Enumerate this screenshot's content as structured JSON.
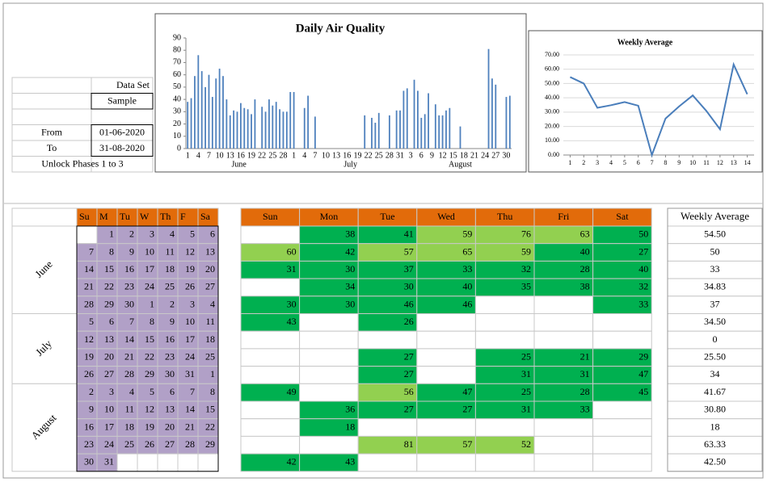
{
  "info": {
    "data_set_label": "Data Set",
    "data_set": "Sample",
    "from_label": "From",
    "from": "01-06-2020",
    "to_label": "To",
    "to": "31-08-2020",
    "note": "Unlock Phases 1 to 3"
  },
  "chart_data": [
    {
      "type": "bar",
      "title": "Daily Air Quality",
      "color": "#4f81bd",
      "grid": false,
      "categories": [
        "1",
        null,
        null,
        "4",
        null,
        null,
        "7",
        null,
        null,
        "10",
        null,
        null,
        "13",
        null,
        null,
        "16",
        null,
        null,
        "19",
        null,
        null,
        "22",
        null,
        null,
        "25",
        null,
        null,
        "28",
        null,
        null,
        "1",
        null,
        null,
        "4",
        null,
        null,
        "7",
        null,
        null,
        "10",
        null,
        null,
        "13",
        null,
        null,
        "16",
        null,
        null,
        "19",
        null,
        null,
        "22",
        null,
        null,
        "25",
        null,
        null,
        "28",
        null,
        null,
        "31",
        null,
        null,
        "3",
        null,
        null,
        "6",
        null,
        null,
        "9",
        null,
        null,
        "12",
        null,
        null,
        "15",
        null,
        null,
        "18",
        null,
        null,
        "21",
        null,
        null,
        "24",
        null,
        null,
        "27",
        null,
        null,
        "30",
        null
      ],
      "groups": [
        "June",
        "July",
        "August"
      ],
      "values": [
        38,
        41,
        59,
        76,
        63,
        50,
        60,
        42,
        57,
        65,
        59,
        40,
        27,
        31,
        30,
        37,
        33,
        32,
        28,
        40,
        null,
        34,
        30,
        40,
        35,
        38,
        32,
        30,
        30,
        46,
        46,
        null,
        null,
        33,
        43,
        null,
        26,
        null,
        null,
        null,
        null,
        null,
        null,
        null,
        null,
        null,
        null,
        null,
        null,
        null,
        27,
        null,
        25,
        21,
        29,
        null,
        null,
        27,
        null,
        31,
        31,
        47,
        49,
        null,
        56,
        47,
        25,
        28,
        45,
        null,
        36,
        27,
        27,
        31,
        33,
        null,
        null,
        18,
        null,
        null,
        null,
        null,
        null,
        null,
        null,
        81,
        57,
        52,
        null,
        null,
        42,
        43
      ],
      "ylim": [
        0,
        90
      ],
      "yticks": [
        0,
        10,
        20,
        30,
        40,
        50,
        60,
        70,
        80,
        90
      ]
    },
    {
      "type": "line",
      "title": "Weekly Average",
      "color": "#4a7ebb",
      "grid": true,
      "x": [
        1,
        2,
        3,
        4,
        5,
        6,
        7,
        8,
        9,
        10,
        11,
        12,
        13,
        14
      ],
      "values": [
        54.5,
        50,
        33,
        34.83,
        37,
        34.5,
        0,
        25.5,
        34,
        41.67,
        30.8,
        18,
        63.33,
        42.5
      ],
      "xlim": [
        0.5,
        14.5
      ],
      "xticks": [
        1,
        2,
        3,
        4,
        5,
        6,
        7,
        8,
        9,
        10,
        11,
        12,
        13,
        14
      ],
      "ylim": [
        0,
        70
      ],
      "yticks": [
        {
          "value": 0,
          "label": "0.00"
        },
        {
          "value": 10,
          "label": "10.00"
        },
        {
          "value": 20,
          "label": "20.00"
        },
        {
          "value": 30,
          "label": "30.00"
        },
        {
          "value": 40,
          "label": "40.00"
        },
        {
          "value": 50,
          "label": "50.00"
        },
        {
          "value": 60,
          "label": "60.00"
        },
        {
          "value": 70,
          "label": "70.00"
        }
      ]
    }
  ],
  "calendar": {
    "day_headers": [
      "Su",
      "M",
      "Tu",
      "W",
      "Th",
      "F",
      "Sa"
    ],
    "value_headers": [
      "Sun",
      "Mon",
      "Tue",
      "Wed",
      "Thu",
      "Fri",
      "Sat"
    ],
    "average_header": "Weekly Average",
    "color_scale": [
      {
        "max": 50,
        "color": "#00b050"
      },
      {
        "max": 100,
        "color": "#92d050"
      }
    ],
    "months": [
      {
        "label": "June",
        "weeks": [
          {
            "days": [
              null,
              1,
              2,
              3,
              4,
              5,
              6
            ],
            "values": [
              null,
              38,
              41,
              59,
              76,
              63,
              50
            ],
            "average": "54.50"
          },
          {
            "days": [
              7,
              8,
              9,
              10,
              11,
              12,
              13
            ],
            "values": [
              60,
              42,
              57,
              65,
              59,
              40,
              27
            ],
            "average": "50"
          },
          {
            "days": [
              14,
              15,
              16,
              17,
              18,
              19,
              20
            ],
            "values": [
              31,
              30,
              37,
              33,
              32,
              28,
              40
            ],
            "average": "33"
          },
          {
            "days": [
              21,
              22,
              23,
              24,
              25,
              26,
              27
            ],
            "values": [
              null,
              34,
              30,
              40,
              35,
              38,
              32
            ],
            "average": "34.83"
          },
          {
            "days": [
              28,
              29,
              30,
              1,
              2,
              3,
              4
            ],
            "values": [
              30,
              30,
              46,
              46,
              null,
              null,
              33
            ],
            "average": "37"
          }
        ]
      },
      {
        "label": "July",
        "weeks": [
          {
            "days": [
              5,
              6,
              7,
              8,
              9,
              10,
              11
            ],
            "values": [
              43,
              null,
              26,
              null,
              null,
              null,
              null
            ],
            "average": "34.50"
          },
          {
            "days": [
              12,
              13,
              14,
              15,
              16,
              17,
              18
            ],
            "values": [
              null,
              null,
              null,
              null,
              null,
              null,
              null
            ],
            "average": "0"
          },
          {
            "days": [
              19,
              20,
              21,
              22,
              23,
              24,
              25
            ],
            "values": [
              null,
              null,
              27,
              null,
              25,
              21,
              29
            ],
            "average": "25.50"
          },
          {
            "days": [
              26,
              27,
              28,
              29,
              30,
              31,
              1
            ],
            "values": [
              null,
              null,
              27,
              null,
              31,
              31,
              47
            ],
            "average": "34"
          }
        ]
      },
      {
        "label": "August",
        "weeks": [
          {
            "days": [
              2,
              3,
              4,
              5,
              6,
              7,
              8
            ],
            "values": [
              49,
              null,
              56,
              47,
              25,
              28,
              45
            ],
            "average": "41.67"
          },
          {
            "days": [
              9,
              10,
              11,
              12,
              13,
              14,
              15
            ],
            "values": [
              null,
              36,
              27,
              27,
              31,
              33,
              null
            ],
            "average": "30.80"
          },
          {
            "days": [
              16,
              17,
              18,
              19,
              20,
              21,
              22
            ],
            "values": [
              null,
              18,
              null,
              null,
              null,
              null,
              null
            ],
            "average": "18"
          },
          {
            "days": [
              23,
              24,
              25,
              26,
              27,
              28,
              29
            ],
            "values": [
              null,
              null,
              81,
              57,
              52,
              null,
              null
            ],
            "average": "63.33"
          },
          {
            "days": [
              30,
              31,
              null,
              null,
              null,
              null,
              null
            ],
            "values": [
              42,
              43,
              null,
              null,
              null,
              null,
              null
            ],
            "average": "42.50"
          }
        ]
      }
    ]
  }
}
